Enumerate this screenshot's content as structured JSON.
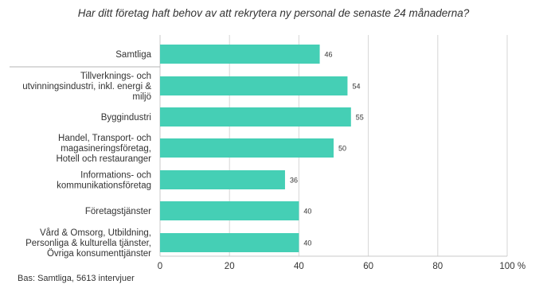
{
  "chart_data": {
    "type": "bar",
    "orientation": "horizontal",
    "title": "Har ditt företag haft behov av att rekrytera ny personal de senaste 24 månaderna?",
    "categories": [
      [
        "Samtliga"
      ],
      [
        "Tillverknings- och",
        "utvinningsindustri, inkl. energi &",
        "miljö"
      ],
      [
        "Byggindustri"
      ],
      [
        "Handel, Transport- och",
        "magasineringsföretag,",
        "Hotell och restauranger"
      ],
      [
        "Informations- och",
        "kommunikationsföretag"
      ],
      [
        "Företagstjänster"
      ],
      [
        "Vård & Omsorg, Utbildning,",
        "Personliga & kulturella tjänster,",
        "Övriga konsumenttjänster"
      ]
    ],
    "values": [
      46,
      54,
      55,
      50,
      36,
      40,
      40
    ],
    "value_labels": [
      "46",
      "54",
      "55",
      "50",
      "36",
      "40",
      "40"
    ],
    "xlim": [
      0,
      100
    ],
    "x_ticks": [
      "0",
      "20",
      "40",
      "60",
      "80",
      "100"
    ],
    "x_unit": "%",
    "grid": true,
    "bar_color": "#45cfb5",
    "footnote": "Bas: Samtliga, 5613 intervjuer"
  }
}
